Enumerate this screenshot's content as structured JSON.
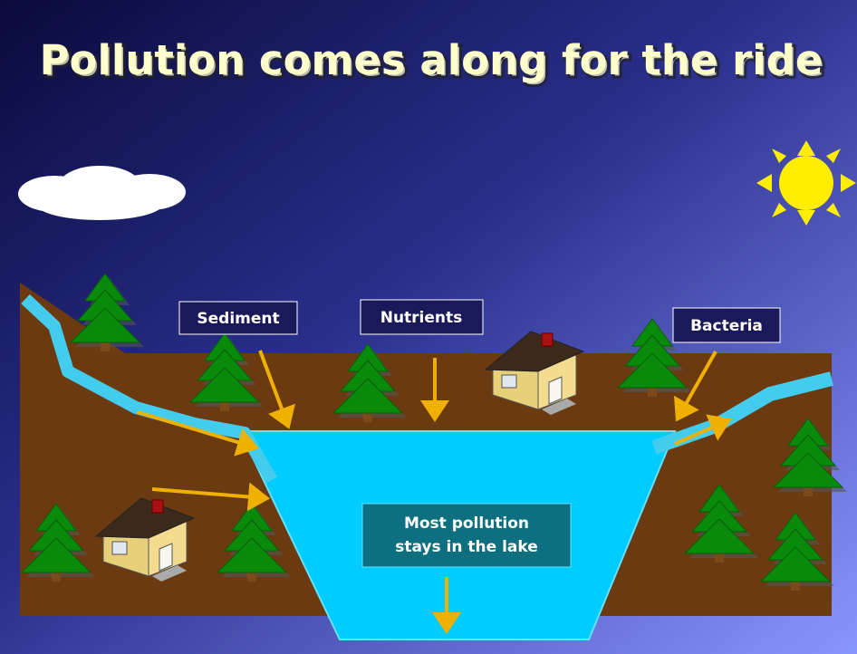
{
  "title": "Pollution comes along for the ride",
  "labels": {
    "sediment": "Sediment",
    "nutrients": "Nutrients",
    "bacteria": "Bacteria",
    "lake": [
      "Most pollution",
      "stays in the lake"
    ]
  }
}
